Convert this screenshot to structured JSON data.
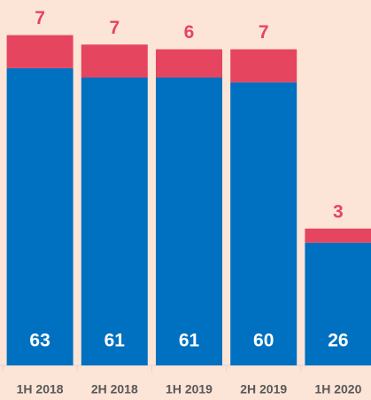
{
  "chart_data": {
    "type": "stacked_bar",
    "categories": [
      "1H 2018",
      "2H 2018",
      "1H 2019",
      "2H 2019",
      "1H 2020"
    ],
    "series": [
      {
        "color": "#0070c0",
        "label_color": "#ffffff",
        "values": [
          63,
          61,
          61,
          60,
          26
        ]
      },
      {
        "color": "#e5455f",
        "label_color": "#e5455f",
        "values": [
          7,
          7,
          6,
          7,
          3
        ]
      }
    ],
    "ylim": [
      0,
      75
    ]
  }
}
